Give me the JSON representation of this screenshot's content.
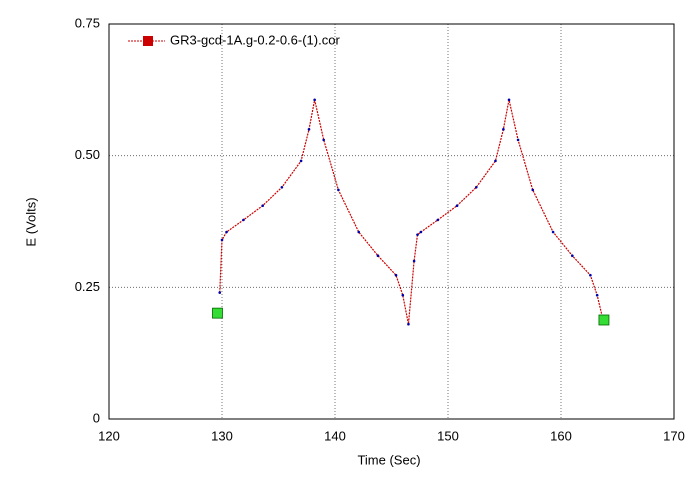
{
  "chart_data": {
    "type": "line",
    "xlabel": "Time (Sec)",
    "ylabel": "E (Volts)",
    "xlim": [
      120,
      170
    ],
    "xticks": [
      120,
      130,
      140,
      150,
      160,
      170
    ],
    "ylim": [
      0,
      0.75
    ],
    "yticks": [
      0,
      0.25,
      {
        "value": 0.5,
        "label": "0.50"
      },
      0.75
    ],
    "grid": true,
    "legend": "upper left",
    "series": [
      {
        "name": "GR3-gcd-1A.g-0.2-0.6-(1).cor",
        "color": "#cc0000",
        "marker_color": "#0000aa",
        "x": [
          129.8,
          130.0,
          130.4,
          131.9,
          133.6,
          135.3,
          137.0,
          137.7,
          138.2,
          139.0,
          140.3,
          142.1,
          143.8,
          145.4,
          146.0,
          146.5,
          147.0,
          147.3,
          147.6,
          149.1,
          150.8,
          152.5,
          154.2,
          154.9,
          155.4,
          156.2,
          157.5,
          159.3,
          161.0,
          162.6,
          163.2,
          163.7
        ],
        "values": [
          0.24,
          0.34,
          0.355,
          0.378,
          0.405,
          0.44,
          0.49,
          0.55,
          0.606,
          0.53,
          0.435,
          0.355,
          0.31,
          0.273,
          0.235,
          0.18,
          0.3,
          0.35,
          0.355,
          0.378,
          0.405,
          0.44,
          0.49,
          0.55,
          0.606,
          0.53,
          0.435,
          0.355,
          0.31,
          0.273,
          0.235,
          0.19
        ]
      }
    ],
    "markers": {
      "color": "#33dd33",
      "x": [
        129.6,
        163.8
      ],
      "values": [
        0.201,
        0.188
      ]
    }
  }
}
